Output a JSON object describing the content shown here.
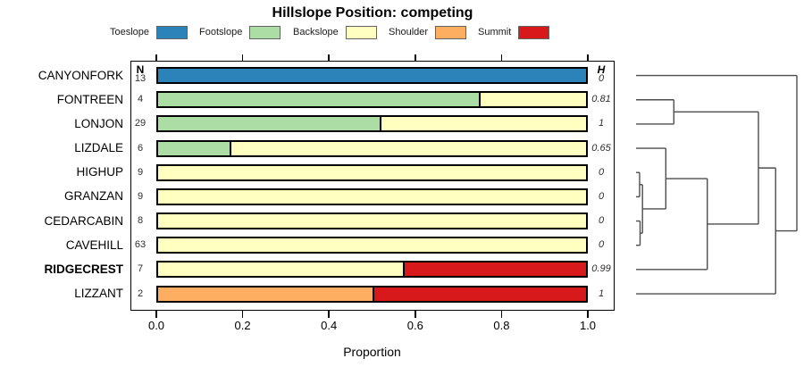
{
  "title": "Hillslope Position: competing",
  "legend": [
    {
      "label": "Toeslope",
      "color": "#2B83BA"
    },
    {
      "label": "Footslope",
      "color": "#ABDDA4"
    },
    {
      "label": "Backslope",
      "color": "#FFFFBF"
    },
    {
      "label": "Shoulder",
      "color": "#FDAE61"
    },
    {
      "label": "Summit",
      "color": "#D7191C"
    }
  ],
  "columns": {
    "n_header": "N",
    "h_header": "H"
  },
  "xaxis": {
    "label": "Proportion",
    "ticks": [
      "0.0",
      "0.2",
      "0.4",
      "0.6",
      "0.8",
      "1.0"
    ]
  },
  "chart_data": {
    "type": "bar",
    "orientation": "horizontal-stacked",
    "title": "Hillslope Position: competing",
    "xlabel": "Proportion",
    "xlim": [
      0,
      1
    ],
    "classes": [
      "Toeslope",
      "Footslope",
      "Backslope",
      "Shoulder",
      "Summit"
    ],
    "rows": [
      {
        "site": "CANYONFORK",
        "n": 13,
        "h": "0",
        "bold": false,
        "segments": [
          {
            "class": "Toeslope",
            "p": 1.0
          }
        ]
      },
      {
        "site": "FONTREEN",
        "n": 4,
        "h": "0.81",
        "bold": false,
        "segments": [
          {
            "class": "Footslope",
            "p": 0.75
          },
          {
            "class": "Backslope",
            "p": 0.25
          }
        ]
      },
      {
        "site": "LONJON",
        "n": 29,
        "h": "1",
        "bold": false,
        "segments": [
          {
            "class": "Footslope",
            "p": 0.517
          },
          {
            "class": "Backslope",
            "p": 0.483
          }
        ]
      },
      {
        "site": "LIZDALE",
        "n": 6,
        "h": "0.65",
        "bold": false,
        "segments": [
          {
            "class": "Footslope",
            "p": 0.167
          },
          {
            "class": "Backslope",
            "p": 0.833
          }
        ]
      },
      {
        "site": "HIGHUP",
        "n": 9,
        "h": "0",
        "bold": false,
        "segments": [
          {
            "class": "Backslope",
            "p": 1.0
          }
        ]
      },
      {
        "site": "GRANZAN",
        "n": 9,
        "h": "0",
        "bold": false,
        "segments": [
          {
            "class": "Backslope",
            "p": 1.0
          }
        ]
      },
      {
        "site": "CEDARCABIN",
        "n": 8,
        "h": "0",
        "bold": false,
        "segments": [
          {
            "class": "Backslope",
            "p": 1.0
          }
        ]
      },
      {
        "site": "CAVEHILL",
        "n": 63,
        "h": "0",
        "bold": false,
        "segments": [
          {
            "class": "Backslope",
            "p": 1.0
          }
        ]
      },
      {
        "site": "RIDGECREST",
        "n": 7,
        "h": "0.99",
        "bold": true,
        "segments": [
          {
            "class": "Backslope",
            "p": 0.571
          },
          {
            "class": "Summit",
            "p": 0.429
          }
        ]
      },
      {
        "site": "LIZZANT",
        "n": 2,
        "h": "1",
        "bold": false,
        "segments": [
          {
            "class": "Shoulder",
            "p": 0.5
          },
          {
            "class": "Summit",
            "p": 0.5
          }
        ]
      }
    ],
    "dendrogram": {
      "description": "hierarchical clustering of sites, leaves ordered as rows, distance d normalized 0-1",
      "tree": {
        "d": 1.0,
        "children": [
          {
            "leaf": 0
          },
          {
            "d": 0.868,
            "children": [
              {
                "d": 0.761,
                "children": [
                  {
                    "d": 0.235,
                    "children": [
                      {
                        "leaf": 1
                      },
                      {
                        "leaf": 2
                      }
                    ]
                  },
                  {
                    "d": 0.443,
                    "children": [
                      {
                        "d": 0.185,
                        "children": [
                          {
                            "leaf": 3
                          },
                          {
                            "d": 0.04,
                            "children": [
                              {
                                "d": 0.022,
                                "children": [
                                  {
                                    "leaf": 4
                                  },
                                  {
                                    "leaf": 5
                                  }
                                ]
                              },
                              {
                                "d": 0.025,
                                "children": [
                                  {
                                    "leaf": 6
                                  },
                                  {
                                    "leaf": 7
                                  }
                                ]
                              }
                            ]
                          }
                        ]
                      },
                      {
                        "leaf": 8
                      }
                    ]
                  }
                ]
              },
              {
                "leaf": 9
              }
            ]
          }
        ]
      }
    }
  }
}
